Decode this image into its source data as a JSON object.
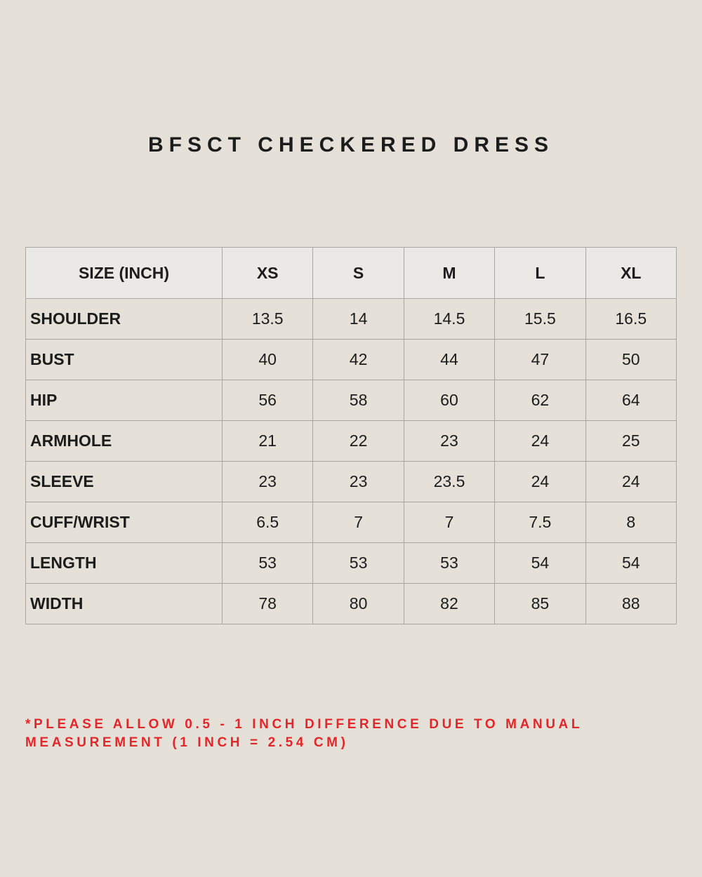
{
  "header": {
    "title": "BFSCT CHECKERED DRESS"
  },
  "table": {
    "columns": [
      "SIZE (INCH)",
      "XS",
      "S",
      "M",
      "L",
      "XL"
    ],
    "rows": [
      [
        "SHOULDER",
        "13.5",
        "14",
        "14.5",
        "15.5",
        "16.5"
      ],
      [
        "BUST",
        "40",
        "42",
        "44",
        "47",
        "50"
      ],
      [
        "HIP",
        "56",
        "58",
        "60",
        "62",
        "64"
      ],
      [
        "ARMHOLE",
        "21",
        "22",
        "23",
        "24",
        "25"
      ],
      [
        "SLEEVE",
        "23",
        "23",
        "23.5",
        "24",
        "24"
      ],
      [
        "CUFF/WRIST",
        "6.5",
        "7",
        "7",
        "7.5",
        "8"
      ],
      [
        "LENGTH",
        "53",
        "53",
        "53",
        "54",
        "54"
      ],
      [
        "WIDTH",
        "78",
        "80",
        "82",
        "85",
        "88"
      ]
    ]
  },
  "note": "*PLEASE ALLOW 0.5 - 1 INCH DIFFERENCE DUE TO MANUAL MEASUREMENT (1 INCH = 2.54 CM)"
}
